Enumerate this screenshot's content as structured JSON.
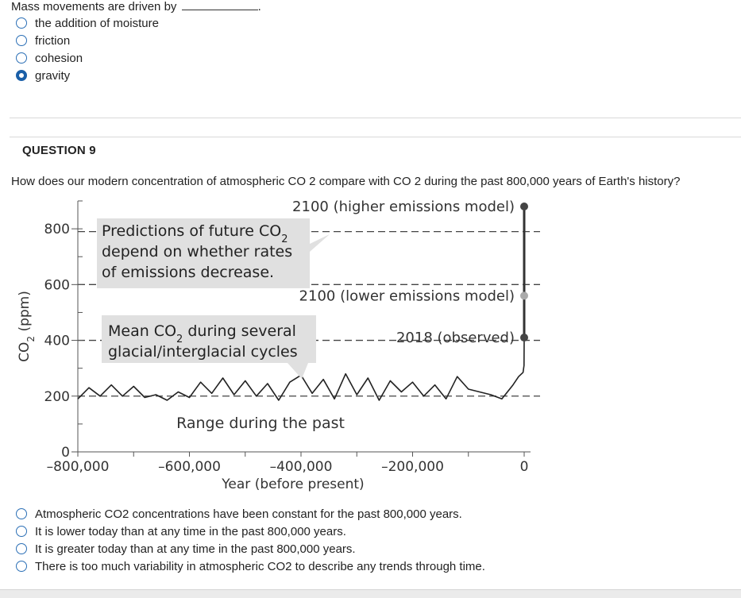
{
  "q8": {
    "stem": "Mass movements are driven by",
    "blank_end": ".",
    "options": [
      {
        "label": "the addition of moisture",
        "selected": false
      },
      {
        "label": "friction",
        "selected": false
      },
      {
        "label": "cohesion",
        "selected": false
      },
      {
        "label": "gravity",
        "selected": true
      }
    ]
  },
  "q9": {
    "header": "QUESTION 9",
    "stem": "How does our modern concentration of atmospheric CO 2 compare with CO 2 during the past 800,000 years of Earth's history?",
    "options": [
      {
        "label": "Atmospheric CO2 concentrations have been constant for the past 800,000 years.",
        "selected": false
      },
      {
        "label": "It is lower today than at any time in the past 800,000 years.",
        "selected": false
      },
      {
        "label": "It is greater today than at any time in the past 800,000 years.",
        "selected": false
      },
      {
        "label": "There is too much variability in atmospheric CO2 to describe any trends through time.",
        "selected": false
      }
    ]
  },
  "chart_data": {
    "type": "line",
    "xlabel": "Year (before present)",
    "ylabel": "CO2 (ppm)",
    "xlim": [
      -800000,
      0
    ],
    "ylim": [
      0,
      900
    ],
    "x_ticks": [
      -800000,
      -600000,
      -400000,
      -200000,
      0
    ],
    "x_tick_labels": [
      "–800,000",
      "–600,000",
      "–400,000",
      "–200,000",
      "0"
    ],
    "y_ticks": [
      0,
      200,
      400,
      600,
      800
    ],
    "y_tick_labels": [
      "0",
      "200",
      "400",
      "600",
      "800"
    ],
    "series": [
      {
        "name": "",
        "x": [
          -800000,
          -780000,
          -760000,
          -740000,
          -720000,
          -700000,
          -680000,
          -660000,
          -640000,
          -620000,
          -600000,
          -580000,
          -560000,
          -540000,
          -520000,
          -500000,
          -480000,
          -460000,
          -440000,
          -420000,
          -400000,
          -380000,
          -360000,
          -340000,
          -320000,
          -300000,
          -280000,
          -260000,
          -240000,
          -220000,
          -200000,
          -180000,
          -160000,
          -140000,
          -120000,
          -100000,
          -80000,
          -60000,
          -40000,
          -20000,
          -10000,
          -2000,
          -250,
          0
        ],
        "y": [
          190,
          230,
          200,
          240,
          200,
          235,
          195,
          205,
          185,
          215,
          195,
          250,
          210,
          265,
          205,
          255,
          200,
          245,
          185,
          250,
          275,
          210,
          260,
          190,
          280,
          205,
          265,
          185,
          255,
          215,
          250,
          200,
          240,
          190,
          270,
          225,
          215,
          205,
          190,
          240,
          270,
          285,
          310,
          410
        ]
      }
    ],
    "points": [
      {
        "label": "2100 (higher emissions model)",
        "x": 0,
        "y": 880,
        "color": "#444444"
      },
      {
        "label": "2100 (lower emissions model)",
        "x": 0,
        "y": 560,
        "color": "#aaaaaa"
      },
      {
        "label": "2018 (observed)",
        "x": 0,
        "y": 410,
        "color": "#444444"
      }
    ],
    "annotations": {
      "predictions": [
        "Predictions of future CO",
        "2",
        "depend on whether rates",
        "of emissions decrease."
      ],
      "mean": [
        "Mean CO",
        "2",
        " during several",
        "glacial/interglacial cycles"
      ],
      "range": "Range during the past"
    },
    "ylabel_parts": [
      "CO",
      "2",
      " (ppm)"
    ],
    "colors": {
      "line": "#222222",
      "dash": "#333333",
      "callout": "#e0e0e0"
    }
  }
}
